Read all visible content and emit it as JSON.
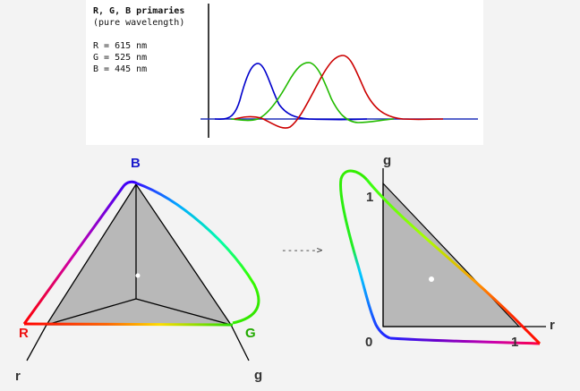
{
  "header": {
    "title": "R, G, B primaries",
    "subtitle": "(pure wavelength)",
    "primaries": [
      {
        "text": "R = 615 nm"
      },
      {
        "text": "G = 525 nm"
      },
      {
        "text": "B = 445 nm"
      }
    ]
  },
  "left_diagram": {
    "labels": {
      "b": "B",
      "r_vertex": "R",
      "g_vertex": "G",
      "r_axis": "r",
      "g_axis": "g"
    }
  },
  "arrow": {
    "text": "------>"
  },
  "right_diagram": {
    "labels": {
      "g_axis": "g",
      "r_axis": "r",
      "one_g": "1",
      "one_r": "1",
      "zero": "0"
    }
  },
  "colors": {
    "background": "#f3f3f3",
    "panel": "#ffffff",
    "red_curve": "#cc0000",
    "green_curve": "#22bb00",
    "blue_curve": "#0000cc",
    "triangle_fill": "#b8b8b8",
    "label_blue": "#1a1acc",
    "label_red": "#ee1111",
    "label_green": "#22aa00"
  }
}
